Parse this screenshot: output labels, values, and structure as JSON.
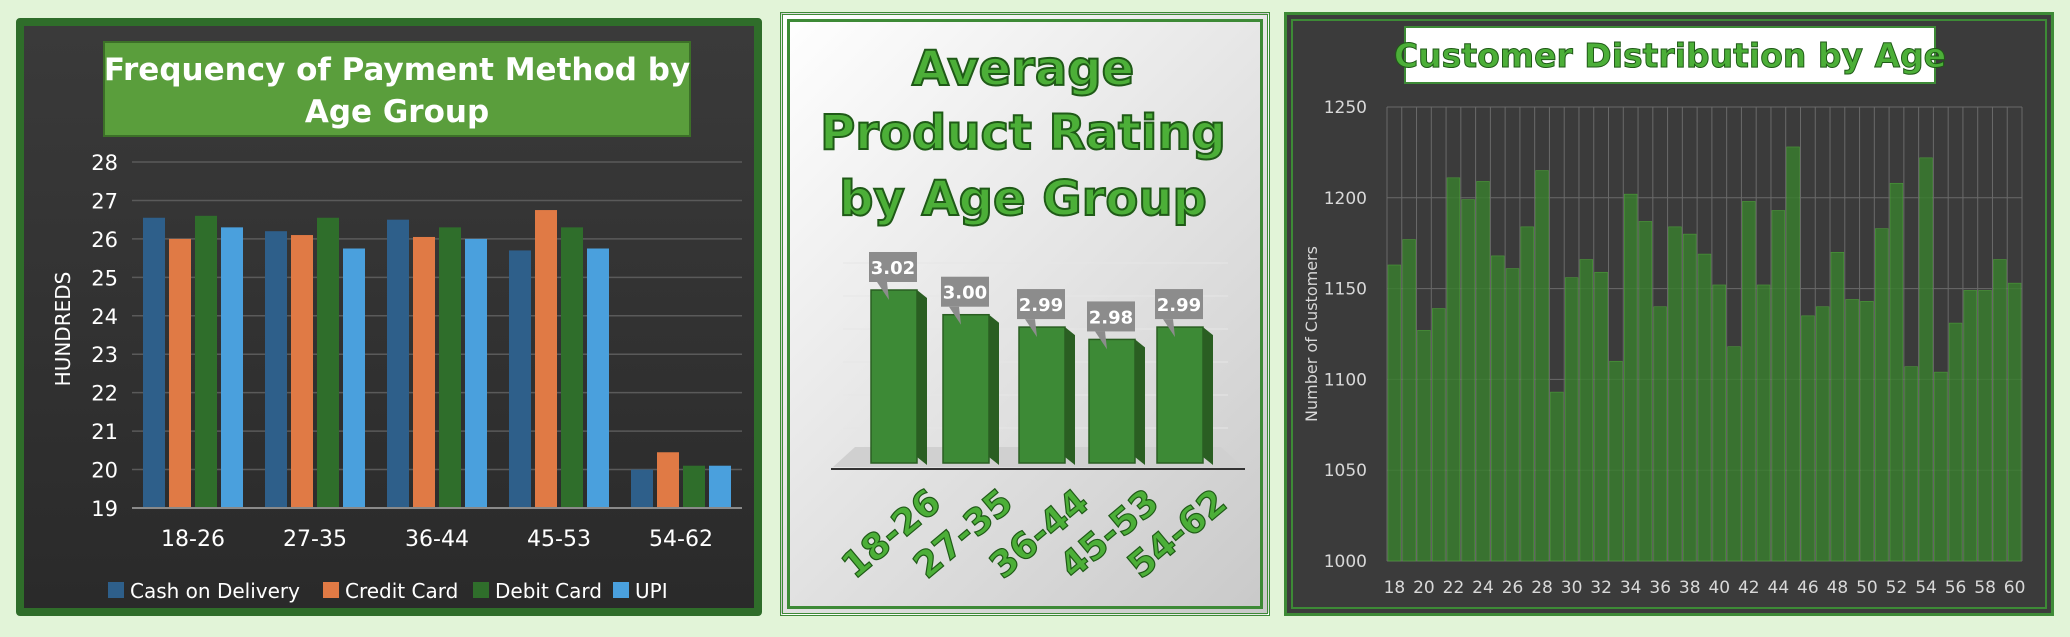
{
  "charts": [
    {
      "type": "bar",
      "title": "Frequency of Payment Method by Age Group",
      "title_lines": [
        "Frequency of Payment Method by",
        "Age Group"
      ],
      "ylabel": "HUNDREDS",
      "categories": [
        "18-26",
        "27-35",
        "36-44",
        "45-53",
        "54-62"
      ],
      "ylim": [
        19,
        28
      ],
      "yticks": [
        "19",
        "20",
        "21",
        "22",
        "23",
        "24",
        "25",
        "26",
        "27",
        "28"
      ],
      "series": [
        {
          "name": "Cash on Delivery",
          "values": [
            26.55,
            26.2,
            26.5,
            25.7,
            20.0
          ],
          "color": "#2e5f8a"
        },
        {
          "name": "Credit Card",
          "values": [
            26.0,
            26.1,
            26.05,
            26.75,
            20.45
          ],
          "color": "#e07a45"
        },
        {
          "name": "Debit Card",
          "values": [
            26.6,
            26.55,
            26.3,
            26.3,
            20.1
          ],
          "color": "#2f6e2b"
        },
        {
          "name": "UPI",
          "values": [
            26.3,
            25.75,
            26.0,
            25.75,
            20.1
          ],
          "color": "#4aa0dd"
        }
      ],
      "legend_position": "bottom"
    },
    {
      "type": "bar",
      "title": "Average Product Rating by Age Group",
      "title_lines": [
        "Average",
        "Product Rating",
        "by Age Group"
      ],
      "categories": [
        "18-26",
        "27-35",
        "36-44",
        "45-53",
        "54-62"
      ],
      "values": [
        3.02,
        3.0,
        2.99,
        2.98,
        2.99
      ],
      "labels": [
        "3.02",
        "3.00",
        "2.99",
        "2.98",
        "2.99"
      ],
      "color": "#3d8a36"
    },
    {
      "type": "bar",
      "title": "Customer Distribution by Age",
      "ylabel": "Number of Customers",
      "ylim": [
        1000,
        1250
      ],
      "yticks": [
        "1000",
        "1050",
        "1100",
        "1150",
        "1200",
        "1250"
      ],
      "x": [
        18,
        19,
        20,
        21,
        22,
        23,
        24,
        25,
        26,
        27,
        28,
        29,
        30,
        31,
        32,
        33,
        34,
        35,
        36,
        37,
        38,
        39,
        40,
        41,
        42,
        43,
        44,
        45,
        46,
        47,
        48,
        49,
        50,
        51,
        52,
        53,
        54,
        55,
        56,
        57,
        58,
        59,
        60
      ],
      "xticks": [
        "18",
        "20",
        "22",
        "24",
        "26",
        "28",
        "30",
        "32",
        "34",
        "36",
        "38",
        "40",
        "42",
        "44",
        "46",
        "48",
        "50",
        "52",
        "54",
        "56",
        "58",
        "60"
      ],
      "values": [
        1163,
        1177,
        1127,
        1139,
        1211,
        1199,
        1209,
        1168,
        1161,
        1184,
        1215,
        1093,
        1156,
        1166,
        1159,
        1110,
        1202,
        1187,
        1140,
        1184,
        1180,
        1169,
        1152,
        1118,
        1198,
        1152,
        1193,
        1228,
        1135,
        1140,
        1170,
        1144,
        1143,
        1183,
        1208,
        1107,
        1222,
        1104,
        1131,
        1149,
        1149,
        1166,
        1153
      ],
      "color": "#3a7d2f"
    }
  ]
}
